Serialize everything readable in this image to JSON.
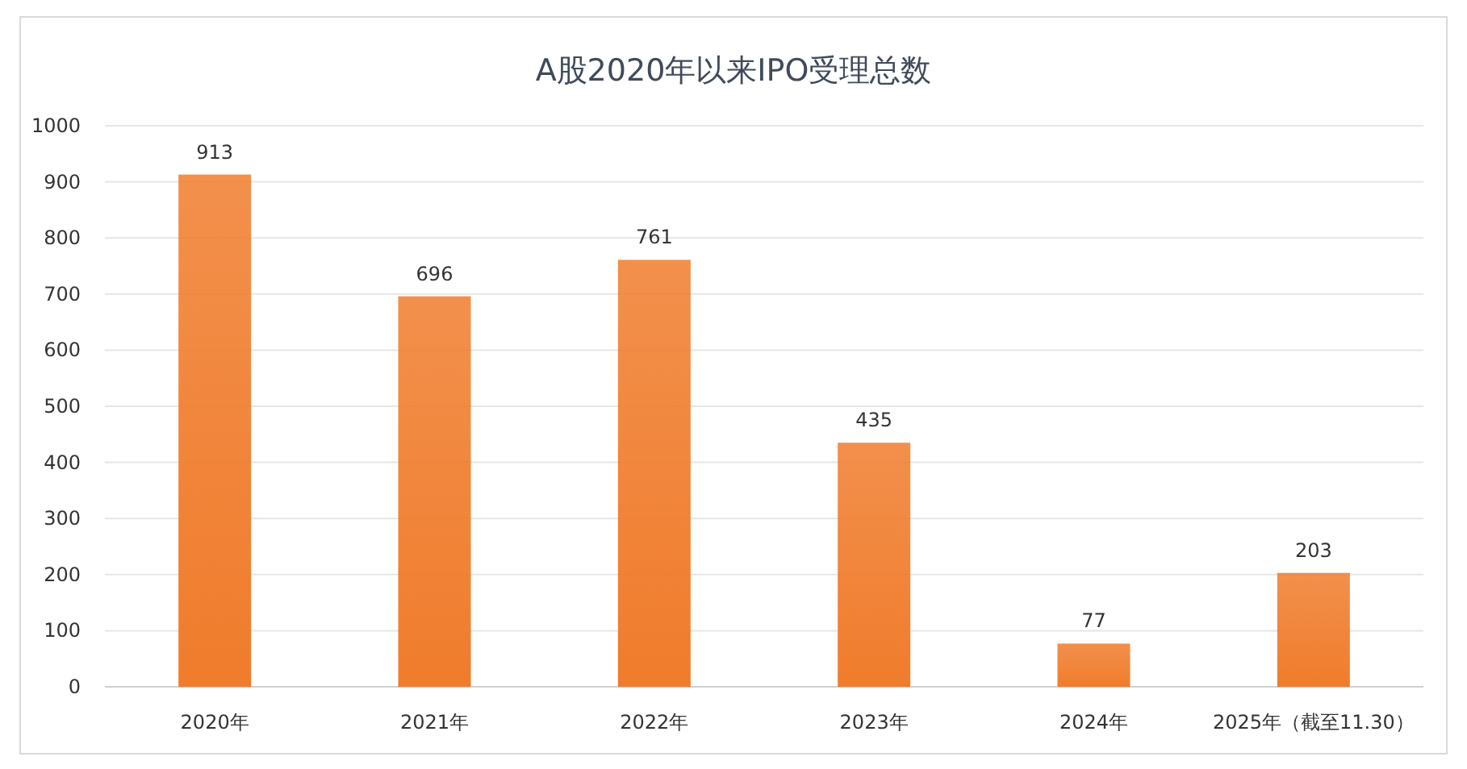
{
  "chart_data": {
    "type": "bar",
    "title": "A股2020年以来IPO受理总数",
    "categories": [
      "2020年",
      "2021年",
      "2022年",
      "2023年",
      "2024年",
      "2025年（截至11.30）"
    ],
    "values": [
      913,
      696,
      761,
      435,
      77,
      203
    ],
    "color": "#f07c2c",
    "ylim": [
      0,
      1000
    ],
    "yticks": [
      0,
      100,
      200,
      300,
      400,
      500,
      600,
      700,
      800,
      900,
      1000
    ],
    "grid": "y",
    "data_labels": true
  }
}
